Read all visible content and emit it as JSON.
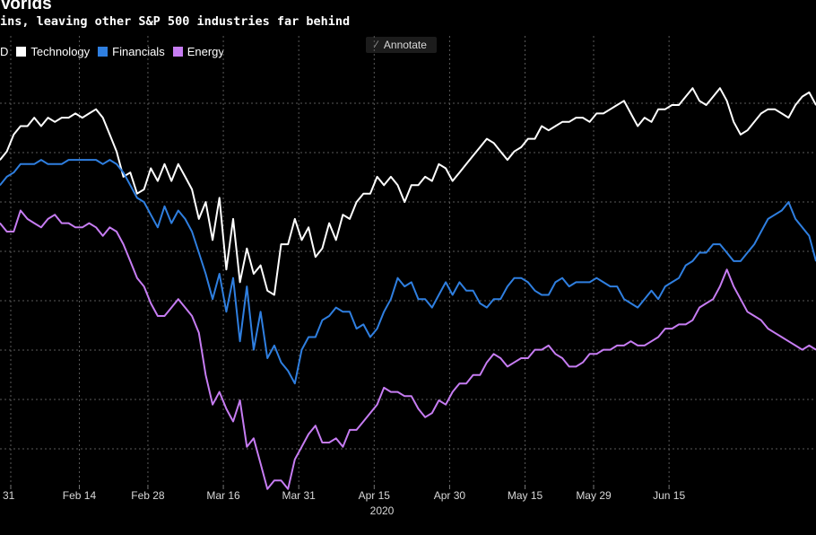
{
  "header": {
    "title": "Vorlds",
    "subtitle": "ins, leaving other S&P 500 industries far behind"
  },
  "legend": {
    "items": [
      {
        "label": "D",
        "color": "#000000"
      },
      {
        "label": "Technology",
        "color": "#ffffff"
      },
      {
        "label": "Financials",
        "color": "#2f7fe0"
      },
      {
        "label": "Energy",
        "color": "#c67cf2"
      }
    ]
  },
  "annotate_button": {
    "label": "Annotate",
    "icon": "pencil-icon"
  },
  "chart_data": {
    "type": "line",
    "title": "Vorlds",
    "xlabel": "2020",
    "ylabel": "",
    "x_tick_labels": [
      "31",
      "Feb 14",
      "Feb 28",
      "Mar 16",
      "Mar 31",
      "Apr 15",
      "Apr 30",
      "May 15",
      "May 29",
      "Jun 15"
    ],
    "x_tick_index": [
      0,
      10,
      20,
      31,
      42,
      53,
      64,
      75,
      85,
      96
    ],
    "ylim": [
      0,
      100
    ],
    "grid": true,
    "legend_position": "top-left",
    "series": [
      {
        "name": "Technology",
        "color": "#ffffff",
        "values": [
          77,
          79,
          83,
          85,
          85,
          87,
          85,
          87,
          86,
          87,
          87,
          88,
          87,
          88,
          89,
          87,
          83,
          79,
          73,
          74,
          69,
          70,
          75,
          72,
          76,
          72,
          76,
          73,
          70,
          63,
          67,
          58,
          68,
          51,
          63,
          48,
          56,
          50,
          52,
          46,
          45,
          57,
          57,
          63,
          58,
          61,
          54,
          56,
          62,
          58,
          64,
          63,
          67,
          69,
          69,
          73,
          71,
          73,
          71,
          67,
          71,
          71,
          73,
          72,
          76,
          75,
          72,
          74,
          76,
          78,
          80,
          82,
          81,
          79,
          77,
          79,
          80,
          82,
          82,
          85,
          84,
          85,
          86,
          86,
          87,
          87,
          86,
          88,
          88,
          89,
          90,
          91,
          88,
          85,
          87,
          86,
          89,
          89,
          90,
          90,
          92,
          94,
          91,
          90,
          92,
          94,
          91,
          86,
          83,
          84,
          86,
          88,
          89,
          89,
          88,
          87,
          90,
          92,
          93,
          90
        ]
      },
      {
        "name": "Financials",
        "color": "#2f7fe0",
        "values": [
          71,
          73,
          74,
          76,
          76,
          76,
          77,
          76,
          76,
          76,
          77,
          77,
          77,
          77,
          77,
          76,
          77,
          76,
          74,
          71,
          68,
          67,
          64,
          61,
          66,
          62,
          65,
          63,
          60,
          55,
          50,
          44,
          50,
          41,
          49,
          34,
          47,
          32,
          41,
          30,
          33,
          29,
          27,
          24,
          32,
          35,
          35,
          39,
          40,
          42,
          41,
          41,
          37,
          38,
          35,
          37,
          41,
          44,
          49,
          47,
          48,
          44,
          44,
          42,
          45,
          48,
          45,
          48,
          46,
          46,
          43,
          42,
          44,
          44,
          47,
          49,
          49,
          48,
          46,
          45,
          45,
          48,
          49,
          47,
          48,
          48,
          48,
          49,
          48,
          47,
          47,
          44,
          43,
          42,
          44,
          46,
          44,
          47,
          48,
          49,
          52,
          53,
          55,
          55,
          57,
          57,
          55,
          53,
          53,
          55,
          57,
          60,
          63,
          64,
          65,
          67,
          63,
          61,
          59,
          53
        ]
      },
      {
        "name": "Energy",
        "color": "#c67cf2",
        "values": [
          62,
          60,
          60,
          65,
          63,
          62,
          61,
          63,
          64,
          62,
          62,
          61,
          61,
          62,
          61,
          59,
          61,
          60,
          57,
          53,
          49,
          47,
          43,
          40,
          40,
          42,
          44,
          42,
          40,
          36,
          26,
          19,
          22,
          18,
          15,
          20,
          9,
          11,
          5,
          -1,
          1,
          1,
          -1,
          6,
          9,
          12,
          14,
          10,
          10,
          11,
          9,
          13,
          13,
          15,
          17,
          19,
          23,
          22,
          22,
          21,
          21,
          18,
          16,
          17,
          20,
          19,
          22,
          24,
          24,
          26,
          26,
          29,
          31,
          30,
          28,
          29,
          30,
          30,
          32,
          32,
          33,
          31,
          30,
          28,
          28,
          29,
          31,
          31,
          32,
          32,
          33,
          33,
          34,
          33,
          33,
          34,
          35,
          37,
          37,
          38,
          38,
          39,
          42,
          43,
          44,
          47,
          51,
          47,
          44,
          41,
          40,
          39,
          37,
          36,
          35,
          34,
          33,
          32,
          33,
          32
        ]
      }
    ]
  }
}
